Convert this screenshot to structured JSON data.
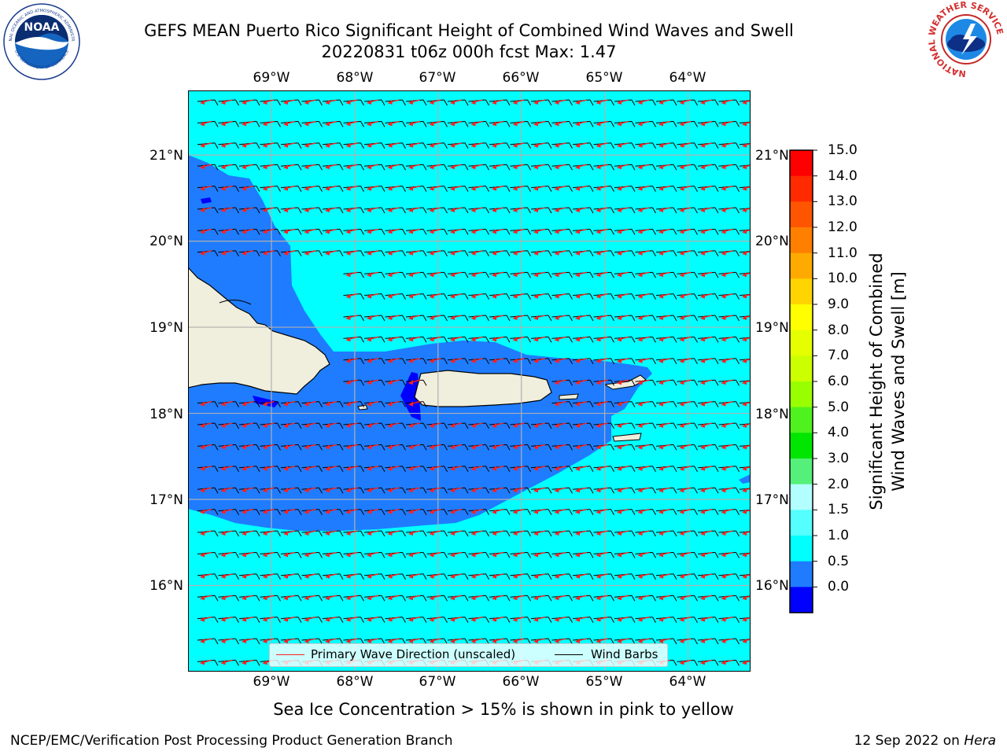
{
  "header": {
    "title_line1": "GEFS MEAN Puerto Rico Significant Height of Combined Wind Waves and Swell",
    "title_line2": "20220831 t06z 000h fcst   Max: 1.47"
  },
  "logos": {
    "noaa": {
      "text": "NOAA",
      "ring_text": "NATIONAL OCEANIC AND ATMOSPHERIC ADMINISTRATION",
      "ring_text_bottom": "U.S. DEPARTMENT OF COMMERCE"
    },
    "nws": {
      "ring_text": "NATIONAL WEATHER SERVICE"
    }
  },
  "map": {
    "lon_labels": [
      "69°W",
      "68°W",
      "67°W",
      "66°W",
      "65°W",
      "64°W"
    ],
    "lat_labels": [
      "21°N",
      "20°N",
      "19°N",
      "18°N",
      "17°N",
      "16°N"
    ],
    "extent": {
      "lon_min": -70.0,
      "lon_max": -63.25,
      "lat_min": 15.0,
      "lat_max": 21.75
    },
    "colors": {
      "ocean_1_1_5": "#00ffff",
      "ocean_0_5_1": "#1f7cff",
      "ocean_0_0_5": "#0000ff",
      "land": "#f0eedc",
      "coast": "#000000",
      "grid": "#b0b0b0",
      "wave_arrow": "#ff2020",
      "barb": "#000000"
    }
  },
  "legend": {
    "wave_label": "Primary Wave Direction (unscaled)",
    "barb_label": "Wind Barbs"
  },
  "colorbar": {
    "title_line1": "Significant Height of Combined",
    "title_line2": "Wind Waves and Swell [m]",
    "labels": [
      "15.0",
      "14.0",
      "13.0",
      "12.0",
      "11.0",
      "10.0",
      "9.0",
      "8.0",
      "7.0",
      "6.0",
      "5.0",
      "4.0",
      "3.0",
      "2.0",
      "1.5",
      "1.0",
      "0.5",
      "0.0"
    ],
    "colors_top_to_bottom": [
      "#ff0000",
      "#ff2a00",
      "#ff5500",
      "#ff7f00",
      "#ffaa00",
      "#ffd400",
      "#ffff00",
      "#e5ff00",
      "#ccff00",
      "#99ff00",
      "#4ff21f",
      "#00e600",
      "#55f07a",
      "#b3ffff",
      "#55ffff",
      "#00ffff",
      "#1f7cff",
      "#0000ff"
    ]
  },
  "notes": {
    "ice": "Sea Ice Concentration > 15% is shown in pink to yellow"
  },
  "footer": {
    "left": "NCEP/EMC/Verification Post Processing Product Generation Branch",
    "date": "12 Sep 2022 on ",
    "machine": "Hera"
  }
}
